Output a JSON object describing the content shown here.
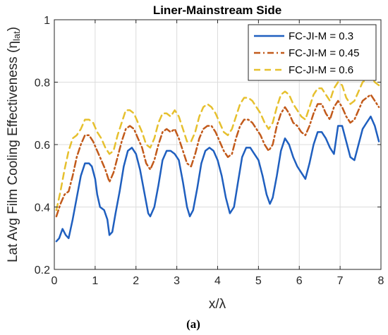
{
  "chart_data": {
    "type": "line",
    "title": "Liner-Mainstream Side",
    "xlabel": "x/λ",
    "ylabel": "Lat Avg Film Cooling Effectiveness (η",
    "ylabel_sub": "lat",
    "ylabel_close": ")",
    "caption": "(a)",
    "xlim": [
      0,
      8
    ],
    "ylim": [
      0.2,
      1
    ],
    "x_ticks": [
      "0",
      "1",
      "2",
      "3",
      "4",
      "5",
      "6",
      "7",
      "8"
    ],
    "y_ticks": [
      "0.2",
      "0.4",
      "0.6",
      "0.8",
      "1"
    ],
    "grid": true,
    "legend_position": "top-right",
    "series": [
      {
        "name": "FC-JI-M = 0.3",
        "color": "#1f5fbf",
        "dash": "solid",
        "points": [
          [
            0.05,
            0.29
          ],
          [
            0.12,
            0.3
          ],
          [
            0.2,
            0.33
          ],
          [
            0.28,
            0.31
          ],
          [
            0.35,
            0.3
          ],
          [
            0.45,
            0.36
          ],
          [
            0.55,
            0.43
          ],
          [
            0.65,
            0.5
          ],
          [
            0.75,
            0.54
          ],
          [
            0.85,
            0.54
          ],
          [
            0.92,
            0.53
          ],
          [
            1.0,
            0.49
          ],
          [
            1.05,
            0.44
          ],
          [
            1.12,
            0.4
          ],
          [
            1.22,
            0.39
          ],
          [
            1.3,
            0.36
          ],
          [
            1.35,
            0.31
          ],
          [
            1.42,
            0.32
          ],
          [
            1.5,
            0.38
          ],
          [
            1.6,
            0.45
          ],
          [
            1.7,
            0.53
          ],
          [
            1.8,
            0.58
          ],
          [
            1.9,
            0.59
          ],
          [
            2.0,
            0.57
          ],
          [
            2.1,
            0.52
          ],
          [
            2.2,
            0.45
          ],
          [
            2.3,
            0.38
          ],
          [
            2.35,
            0.37
          ],
          [
            2.45,
            0.4
          ],
          [
            2.55,
            0.47
          ],
          [
            2.65,
            0.55
          ],
          [
            2.75,
            0.58
          ],
          [
            2.85,
            0.58
          ],
          [
            2.95,
            0.57
          ],
          [
            3.05,
            0.55
          ],
          [
            3.15,
            0.48
          ],
          [
            3.25,
            0.4
          ],
          [
            3.32,
            0.37
          ],
          [
            3.4,
            0.39
          ],
          [
            3.5,
            0.46
          ],
          [
            3.6,
            0.54
          ],
          [
            3.7,
            0.58
          ],
          [
            3.8,
            0.59
          ],
          [
            3.9,
            0.58
          ],
          [
            4.0,
            0.55
          ],
          [
            4.1,
            0.5
          ],
          [
            4.2,
            0.43
          ],
          [
            4.3,
            0.38
          ],
          [
            4.4,
            0.4
          ],
          [
            4.5,
            0.48
          ],
          [
            4.6,
            0.56
          ],
          [
            4.7,
            0.59
          ],
          [
            4.8,
            0.59
          ],
          [
            4.9,
            0.57
          ],
          [
            5.0,
            0.55
          ],
          [
            5.1,
            0.5
          ],
          [
            5.2,
            0.44
          ],
          [
            5.28,
            0.41
          ],
          [
            5.35,
            0.43
          ],
          [
            5.45,
            0.5
          ],
          [
            5.55,
            0.58
          ],
          [
            5.65,
            0.62
          ],
          [
            5.75,
            0.6
          ],
          [
            5.85,
            0.56
          ],
          [
            5.95,
            0.53
          ],
          [
            6.05,
            0.51
          ],
          [
            6.15,
            0.49
          ],
          [
            6.25,
            0.54
          ],
          [
            6.35,
            0.6
          ],
          [
            6.45,
            0.64
          ],
          [
            6.55,
            0.64
          ],
          [
            6.65,
            0.62
          ],
          [
            6.75,
            0.59
          ],
          [
            6.85,
            0.57
          ],
          [
            6.95,
            0.66
          ],
          [
            7.05,
            0.66
          ],
          [
            7.15,
            0.61
          ],
          [
            7.25,
            0.56
          ],
          [
            7.35,
            0.55
          ],
          [
            7.45,
            0.6
          ],
          [
            7.55,
            0.65
          ],
          [
            7.65,
            0.67
          ],
          [
            7.75,
            0.69
          ],
          [
            7.85,
            0.66
          ],
          [
            7.95,
            0.61
          ]
        ]
      },
      {
        "name": "FC-JI-M = 0.45",
        "color": "#c25a1b",
        "dash": "dashdot",
        "points": [
          [
            0.05,
            0.37
          ],
          [
            0.15,
            0.41
          ],
          [
            0.25,
            0.44
          ],
          [
            0.35,
            0.45
          ],
          [
            0.45,
            0.5
          ],
          [
            0.55,
            0.56
          ],
          [
            0.65,
            0.6
          ],
          [
            0.75,
            0.63
          ],
          [
            0.85,
            0.63
          ],
          [
            0.95,
            0.61
          ],
          [
            1.05,
            0.58
          ],
          [
            1.15,
            0.55
          ],
          [
            1.25,
            0.52
          ],
          [
            1.35,
            0.48
          ],
          [
            1.45,
            0.51
          ],
          [
            1.55,
            0.56
          ],
          [
            1.65,
            0.61
          ],
          [
            1.75,
            0.65
          ],
          [
            1.85,
            0.66
          ],
          [
            1.95,
            0.65
          ],
          [
            2.05,
            0.62
          ],
          [
            2.15,
            0.59
          ],
          [
            2.25,
            0.54
          ],
          [
            2.35,
            0.52
          ],
          [
            2.45,
            0.55
          ],
          [
            2.55,
            0.6
          ],
          [
            2.65,
            0.64
          ],
          [
            2.75,
            0.65
          ],
          [
            2.85,
            0.64
          ],
          [
            2.95,
            0.65
          ],
          [
            3.05,
            0.62
          ],
          [
            3.15,
            0.58
          ],
          [
            3.25,
            0.54
          ],
          [
            3.35,
            0.53
          ],
          [
            3.45,
            0.57
          ],
          [
            3.55,
            0.62
          ],
          [
            3.65,
            0.65
          ],
          [
            3.75,
            0.66
          ],
          [
            3.85,
            0.66
          ],
          [
            3.95,
            0.64
          ],
          [
            4.05,
            0.61
          ],
          [
            4.15,
            0.58
          ],
          [
            4.25,
            0.56
          ],
          [
            4.35,
            0.57
          ],
          [
            4.45,
            0.62
          ],
          [
            4.55,
            0.66
          ],
          [
            4.65,
            0.68
          ],
          [
            4.75,
            0.68
          ],
          [
            4.85,
            0.67
          ],
          [
            4.95,
            0.65
          ],
          [
            5.05,
            0.63
          ],
          [
            5.15,
            0.6
          ],
          [
            5.25,
            0.58
          ],
          [
            5.35,
            0.6
          ],
          [
            5.45,
            0.66
          ],
          [
            5.55,
            0.7
          ],
          [
            5.65,
            0.72
          ],
          [
            5.75,
            0.7
          ],
          [
            5.85,
            0.67
          ],
          [
            5.95,
            0.66
          ],
          [
            6.05,
            0.64
          ],
          [
            6.15,
            0.63
          ],
          [
            6.25,
            0.66
          ],
          [
            6.35,
            0.7
          ],
          [
            6.45,
            0.73
          ],
          [
            6.55,
            0.73
          ],
          [
            6.65,
            0.7
          ],
          [
            6.75,
            0.68
          ],
          [
            6.85,
            0.72
          ],
          [
            6.95,
            0.74
          ],
          [
            7.05,
            0.72
          ],
          [
            7.15,
            0.69
          ],
          [
            7.25,
            0.67
          ],
          [
            7.35,
            0.68
          ],
          [
            7.45,
            0.71
          ],
          [
            7.55,
            0.74
          ],
          [
            7.65,
            0.75
          ],
          [
            7.75,
            0.76
          ],
          [
            7.85,
            0.74
          ],
          [
            7.95,
            0.72
          ]
        ]
      },
      {
        "name": "FC-JI-M = 0.6",
        "color": "#e6c02e",
        "dash": "dashed",
        "points": [
          [
            0.05,
            0.39
          ],
          [
            0.15,
            0.45
          ],
          [
            0.25,
            0.52
          ],
          [
            0.35,
            0.58
          ],
          [
            0.45,
            0.62
          ],
          [
            0.55,
            0.63
          ],
          [
            0.65,
            0.65
          ],
          [
            0.75,
            0.68
          ],
          [
            0.85,
            0.68
          ],
          [
            0.95,
            0.67
          ],
          [
            1.05,
            0.64
          ],
          [
            1.15,
            0.62
          ],
          [
            1.25,
            0.59
          ],
          [
            1.35,
            0.57
          ],
          [
            1.45,
            0.58
          ],
          [
            1.55,
            0.63
          ],
          [
            1.65,
            0.67
          ],
          [
            1.75,
            0.71
          ],
          [
            1.85,
            0.71
          ],
          [
            1.95,
            0.7
          ],
          [
            2.05,
            0.67
          ],
          [
            2.15,
            0.64
          ],
          [
            2.25,
            0.6
          ],
          [
            2.35,
            0.59
          ],
          [
            2.45,
            0.62
          ],
          [
            2.55,
            0.67
          ],
          [
            2.65,
            0.7
          ],
          [
            2.75,
            0.7
          ],
          [
            2.85,
            0.69
          ],
          [
            2.95,
            0.71
          ],
          [
            3.05,
            0.69
          ],
          [
            3.15,
            0.65
          ],
          [
            3.25,
            0.61
          ],
          [
            3.35,
            0.61
          ],
          [
            3.45,
            0.64
          ],
          [
            3.55,
            0.69
          ],
          [
            3.65,
            0.72
          ],
          [
            3.75,
            0.73
          ],
          [
            3.85,
            0.72
          ],
          [
            3.95,
            0.7
          ],
          [
            4.05,
            0.67
          ],
          [
            4.15,
            0.64
          ],
          [
            4.25,
            0.63
          ],
          [
            4.35,
            0.65
          ],
          [
            4.45,
            0.69
          ],
          [
            4.55,
            0.73
          ],
          [
            4.65,
            0.75
          ],
          [
            4.75,
            0.75
          ],
          [
            4.85,
            0.74
          ],
          [
            4.95,
            0.72
          ],
          [
            5.05,
            0.7
          ],
          [
            5.15,
            0.67
          ],
          [
            5.25,
            0.65
          ],
          [
            5.35,
            0.67
          ],
          [
            5.45,
            0.72
          ],
          [
            5.55,
            0.76
          ],
          [
            5.65,
            0.77
          ],
          [
            5.75,
            0.76
          ],
          [
            5.85,
            0.73
          ],
          [
            5.95,
            0.71
          ],
          [
            6.05,
            0.69
          ],
          [
            6.15,
            0.68
          ],
          [
            6.25,
            0.72
          ],
          [
            6.35,
            0.76
          ],
          [
            6.45,
            0.78
          ],
          [
            6.55,
            0.78
          ],
          [
            6.65,
            0.76
          ],
          [
            6.75,
            0.74
          ],
          [
            6.85,
            0.78
          ],
          [
            6.95,
            0.8
          ],
          [
            7.05,
            0.79
          ],
          [
            7.15,
            0.75
          ],
          [
            7.25,
            0.73
          ],
          [
            7.35,
            0.74
          ],
          [
            7.45,
            0.77
          ],
          [
            7.55,
            0.8
          ],
          [
            7.65,
            0.81
          ],
          [
            7.75,
            0.82
          ],
          [
            7.85,
            0.8
          ],
          [
            7.95,
            0.79
          ]
        ]
      }
    ]
  }
}
